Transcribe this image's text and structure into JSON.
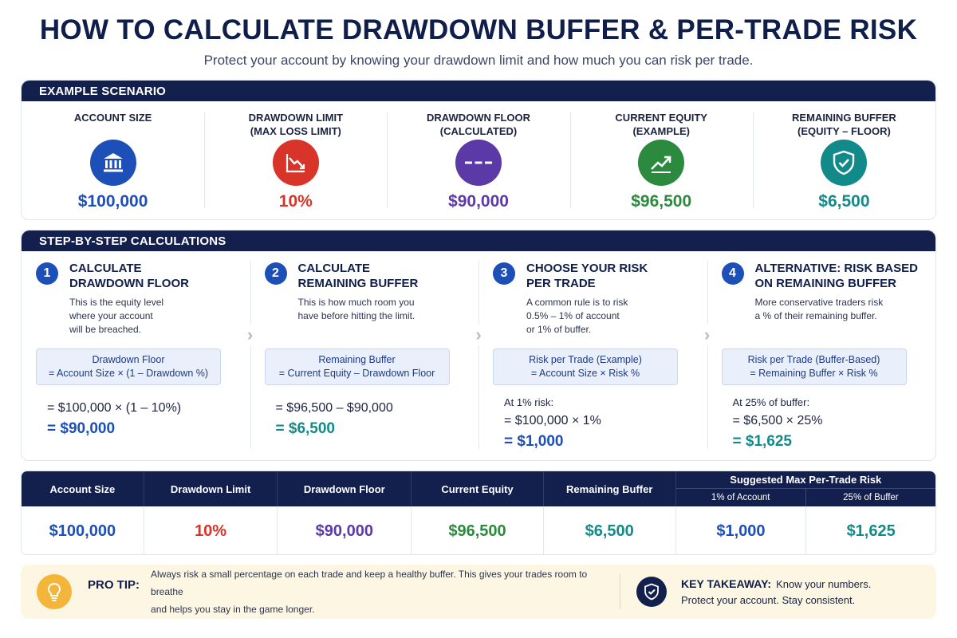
{
  "header": {
    "title": "HOW TO CALCULATE DRAWDOWN BUFFER & PER-TRADE RISK",
    "subtitle": "Protect your account by knowing your drawdown limit and how much you can risk per trade."
  },
  "scenario": {
    "heading": "EXAMPLE SCENARIO",
    "metrics": [
      {
        "label1": "ACCOUNT SIZE",
        "label2": "",
        "value": "$100,000",
        "color": "#1c4fb8",
        "icon": "bank-icon"
      },
      {
        "label1": "DRAWDOWN LIMIT",
        "label2": "(MAX LOSS LIMIT)",
        "value": "10%",
        "color": "#d8342a",
        "icon": "trend-down-icon"
      },
      {
        "label1": "DRAWDOWN FLOOR",
        "label2": "(CALCULATED)",
        "value": "$90,000",
        "color": "#5b3aa8",
        "icon": "dashes-icon"
      },
      {
        "label1": "CURRENT EQUITY",
        "label2": "(EXAMPLE)",
        "value": "$96,500",
        "color": "#2b8a3e",
        "icon": "trend-up-icon"
      },
      {
        "label1": "REMAINING BUFFER",
        "label2": "(EQUITY – FLOOR)",
        "value": "$6,500",
        "color": "#138a8a",
        "icon": "shield-check-icon"
      }
    ]
  },
  "steps": {
    "heading": "STEP-BY-STEP CALCULATIONS",
    "items": [
      {
        "num": "1",
        "title1": "CALCULATE",
        "title2": "DRAWDOWN FLOOR",
        "desc1": "This is the equity level",
        "desc2": "where your account",
        "desc3": "will be breached.",
        "formula1": "Drawdown Floor",
        "formula2": "= Account Size × (1 – Drawdown %)",
        "note": "",
        "calc": "= $100,000 × (1 – 10%)",
        "result": "= $90,000",
        "result_color": "#1c4fb8"
      },
      {
        "num": "2",
        "title1": "CALCULATE",
        "title2": "REMAINING BUFFER",
        "desc1": "This is how much room you",
        "desc2": "have before hitting the limit.",
        "desc3": "",
        "formula1": "Remaining Buffer",
        "formula2": "= Current Equity – Drawdown Floor",
        "note": "",
        "calc": "= $96,500 – $90,000",
        "result": "= $6,500",
        "result_color": "#138a8a"
      },
      {
        "num": "3",
        "title1": "CHOOSE YOUR RISK",
        "title2": "PER TRADE",
        "desc1": "A common rule is to risk",
        "desc2": "0.5% – 1% of account",
        "desc3": "or 1% of buffer.",
        "formula1": "Risk per Trade (Example)",
        "formula2": "= Account Size × Risk %",
        "note": "At 1% risk:",
        "calc": "= $100,000 × 1%",
        "result": "= $1,000",
        "result_color": "#1c4fb8"
      },
      {
        "num": "4",
        "title1": "ALTERNATIVE: RISK BASED",
        "title2": "ON REMAINING BUFFER",
        "desc1": "More conservative traders risk",
        "desc2": "a % of their remaining buffer.",
        "desc3": "",
        "formula1": "Risk per Trade (Buffer-Based)",
        "formula2": "= Remaining Buffer × Risk %",
        "note": "At 25% of buffer:",
        "calc": "= $6,500 × 25%",
        "result": "= $1,625",
        "result_color": "#138a8a"
      }
    ]
  },
  "summary": {
    "headers": [
      "Account Size",
      "Drawdown Limit",
      "Drawdown Floor",
      "Current Equity",
      "Remaining Buffer"
    ],
    "group_title": "Suggested Max Per-Trade Risk",
    "group_sub": [
      "1% of Account",
      "25% of Buffer"
    ],
    "values": [
      "$100,000",
      "10%",
      "$90,000",
      "$96,500",
      "$6,500",
      "$1,000",
      "$1,625"
    ],
    "colors": [
      "#1c4fb8",
      "#d8342a",
      "#5b3aa8",
      "#2b8a3e",
      "#138a8a",
      "#1c4fb8",
      "#138a8a"
    ]
  },
  "tip": {
    "label": "PRO TIP:",
    "text1": "Always risk a small percentage on each trade and keep a healthy buffer. This gives your trades room to breathe",
    "text2": "and helps you stay in the game longer.",
    "takeaway_label": "KEY TAKEAWAY:",
    "takeaway1": "Know your numbers.",
    "takeaway2": "Protect your account. Stay consistent."
  }
}
